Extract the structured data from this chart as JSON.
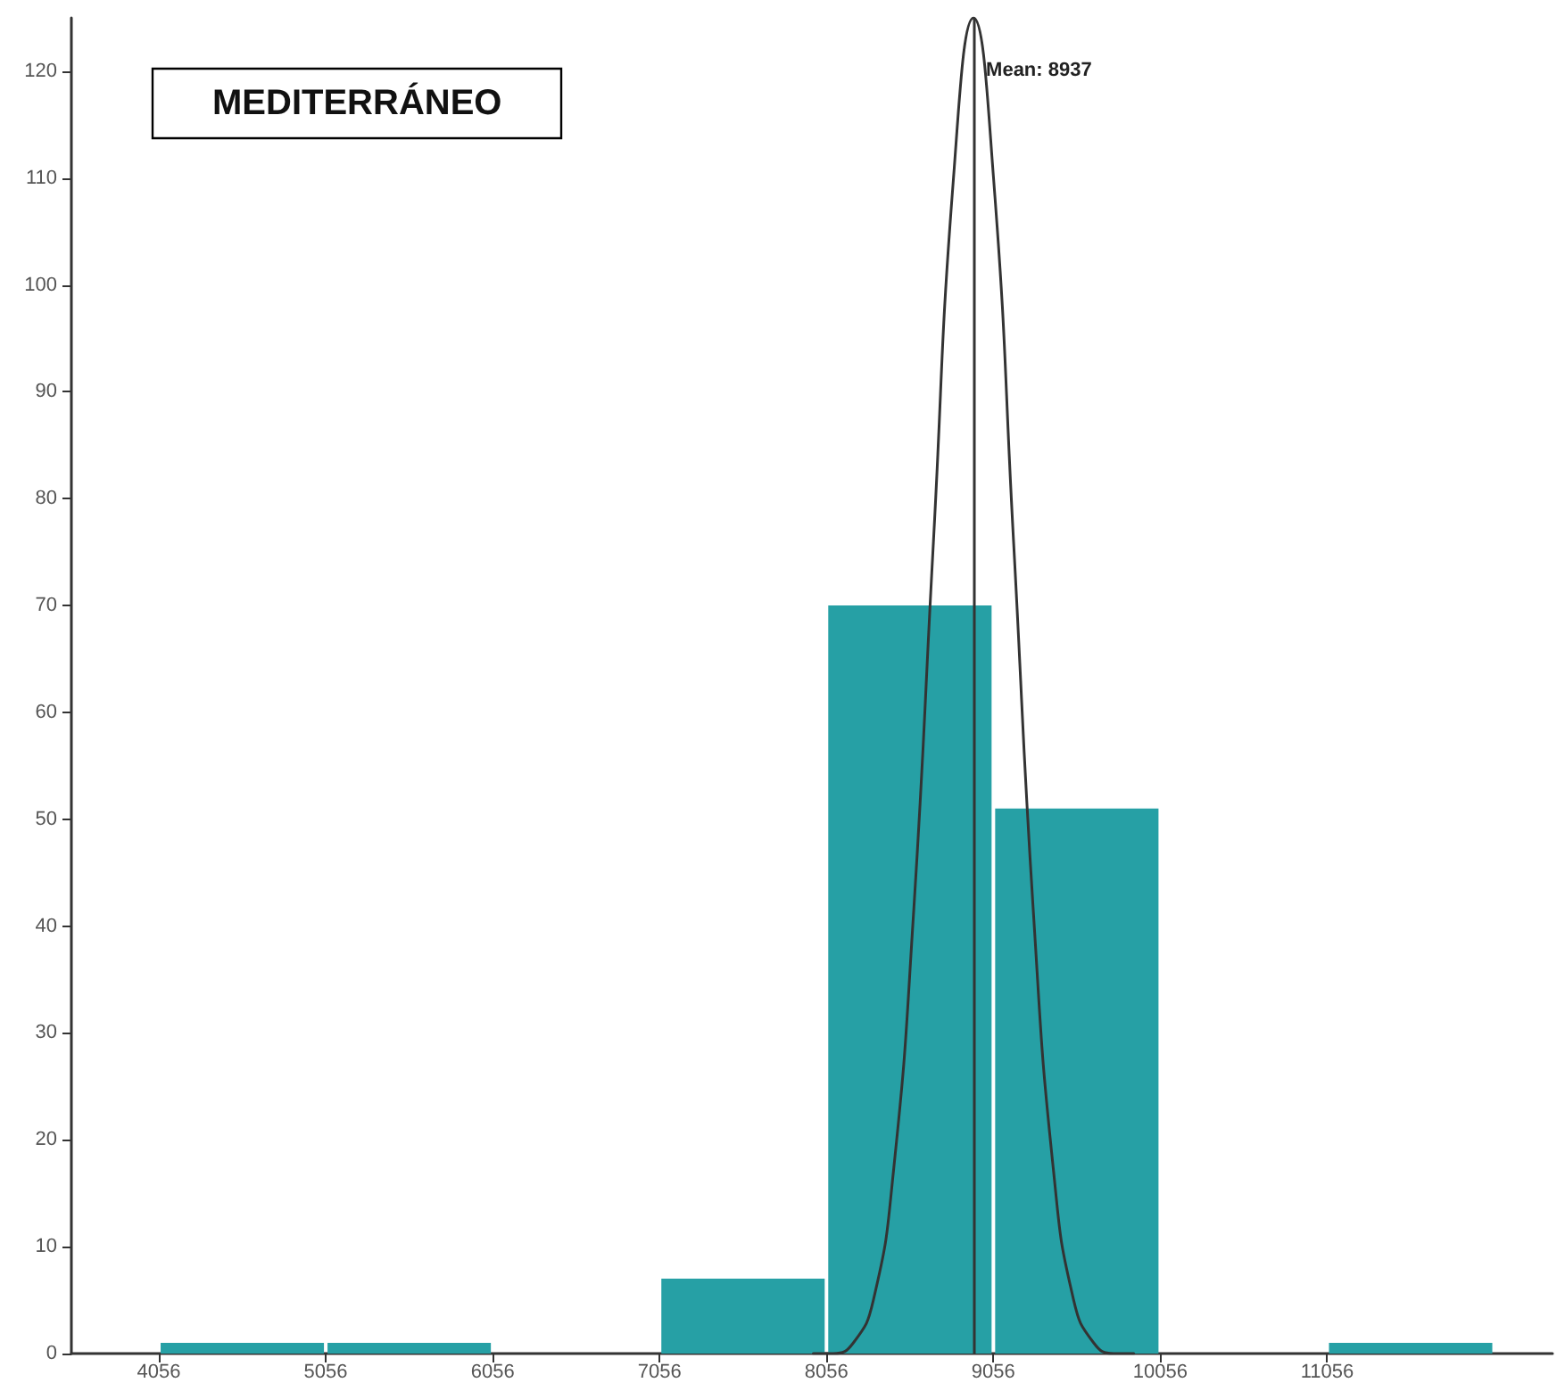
{
  "chart_data": {
    "type": "histogram",
    "title": "MEDITERRÁNEO",
    "bins": [
      4056,
      5056,
      6056,
      7056,
      8056,
      9056,
      10056,
      11056,
      12056
    ],
    "series": [
      {
        "values": [
          1,
          1,
          0,
          7,
          70,
          51,
          0,
          1
        ],
        "color": "#26a0a5"
      },
      {
        "type": "line",
        "color": "#333333",
        "x": [
          7977,
          8097,
          8217,
          8337,
          8457,
          8577,
          8697,
          8817,
          8937,
          9057,
          9177,
          9297,
          9417,
          9537,
          9657,
          9777,
          9897
        ],
        "values": [
          0,
          0,
          1,
          5,
          17,
          41,
          76,
          110,
          125,
          110,
          76,
          41,
          17,
          5,
          1,
          0,
          0
        ]
      }
    ],
    "xlim": [
      3532,
      12406
    ],
    "xticks": [
      4056,
      5056,
      6056,
      7056,
      8056,
      9056,
      10056,
      11056
    ],
    "ylim": [
      0,
      125
    ],
    "yticks": [
      0,
      10,
      20,
      30,
      40,
      50,
      60,
      70,
      80,
      90,
      100,
      110,
      120
    ],
    "ref_lines": [
      {
        "axis": "x",
        "value": 8937,
        "label": "Mean: 8937",
        "color": "#333333"
      }
    ],
    "grid": false
  }
}
